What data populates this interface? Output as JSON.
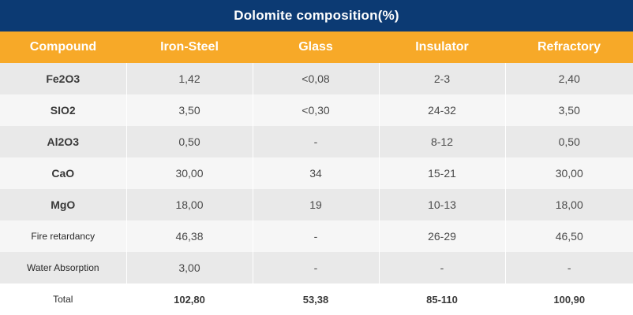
{
  "title": "Dolomite composition(%)",
  "headers": [
    "Compound",
    "Iron-Steel",
    "Glass",
    "Insulator",
    "Refractory"
  ],
  "rows": [
    [
      "Fe2O3",
      "1,42",
      "<0,08",
      "2-3",
      "2,40"
    ],
    [
      "SIO2",
      "3,50",
      "<0,30",
      "24-32",
      "3,50"
    ],
    [
      "Al2O3",
      "0,50",
      "-",
      "8-12",
      "0,50"
    ],
    [
      "CaO",
      "30,00",
      "34",
      "15-21",
      "30,00"
    ],
    [
      "MgO",
      "18,00",
      "19",
      "10-13",
      "18,00"
    ],
    [
      "Fire retardancy",
      "46,38",
      "-",
      "26-29",
      "46,50"
    ],
    [
      "Water Absorption",
      "3,00",
      "-",
      "-",
      "-"
    ],
    [
      "Total",
      "102,80",
      "53,38",
      "85-110",
      "100,90"
    ]
  ],
  "colors": {
    "title_bg": "#0c3a73",
    "header_bg": "#f7a928"
  }
}
